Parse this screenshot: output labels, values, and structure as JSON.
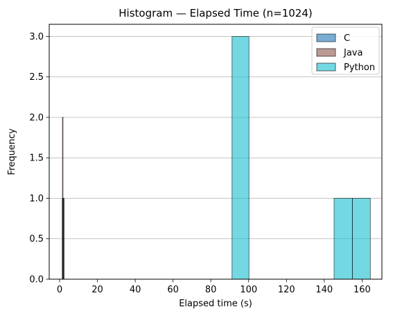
{
  "chart_data": {
    "type": "bar",
    "chart_kind": "histogram",
    "title": "Histogram — Elapsed Time (n=1024)",
    "xlabel": "Elapsed time (s)",
    "ylabel": "Frequency",
    "xlim": [
      -5.5,
      170.5
    ],
    "ylim": [
      0,
      3.15
    ],
    "xticks": [
      0,
      20,
      40,
      60,
      80,
      100,
      120,
      140,
      160
    ],
    "yticks": [
      0.0,
      0.5,
      1.0,
      1.5,
      2.0,
      2.5,
      3.0
    ],
    "ytick_labels": [
      "0.0",
      "0.5",
      "1.0",
      "1.5",
      "2.0",
      "2.5",
      "3.0"
    ],
    "grid": "y",
    "legend_position": "top-right",
    "series": [
      {
        "name": "C",
        "color": "#1f77b4",
        "bins": [
          {
            "x0": 1.4,
            "x1": 1.6,
            "value": 1
          },
          {
            "x0": 1.6,
            "x1": 1.8,
            "value": 0
          },
          {
            "x0": 1.8,
            "x1": 2.0,
            "value": 1
          }
        ]
      },
      {
        "name": "Java",
        "color": "#8c564b",
        "bins": [
          {
            "x0": 1.5,
            "x1": 1.8,
            "value": 2
          },
          {
            "x0": 1.8,
            "x1": 2.1,
            "value": 0
          },
          {
            "x0": 2.1,
            "x1": 2.4,
            "value": 1
          }
        ]
      },
      {
        "name": "Python",
        "color": "#17becf",
        "bins": [
          {
            "x0": 91.2,
            "x1": 100.2,
            "value": 3
          },
          {
            "x0": 100.2,
            "x1": 109.2,
            "value": 0
          },
          {
            "x0": 109.2,
            "x1": 118.2,
            "value": 0
          },
          {
            "x0": 118.2,
            "x1": 127.2,
            "value": 0
          },
          {
            "x0": 127.2,
            "x1": 136.2,
            "value": 0
          },
          {
            "x0": 136.2,
            "x1": 145.2,
            "value": 0
          },
          {
            "x0": 145.2,
            "x1": 154.9,
            "value": 1
          },
          {
            "x0": 154.9,
            "x1": 164.4,
            "value": 1
          }
        ]
      }
    ]
  }
}
